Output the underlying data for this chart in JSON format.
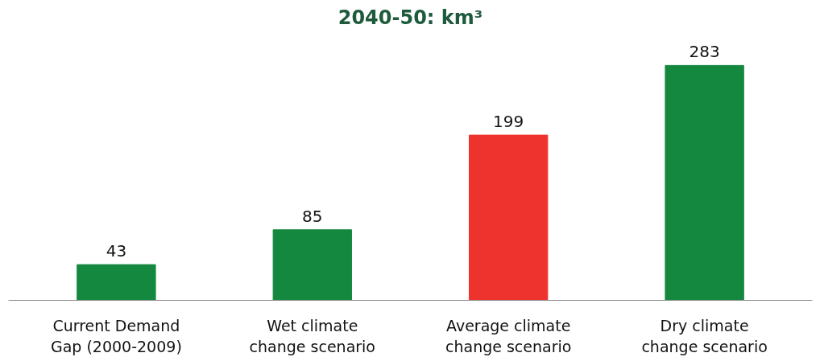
{
  "chart_data": {
    "type": "bar",
    "title": "2040-50: km³",
    "categories": [
      "Current Demand Gap (2000-2009)",
      "Wet climate change scenario",
      "Average climate change scenario",
      "Dry climate change scenario"
    ],
    "values": [
      43,
      85,
      199,
      283
    ],
    "colors": [
      "#15883f",
      "#15883f",
      "#ee322d",
      "#15883f"
    ],
    "data_labels": true
  }
}
